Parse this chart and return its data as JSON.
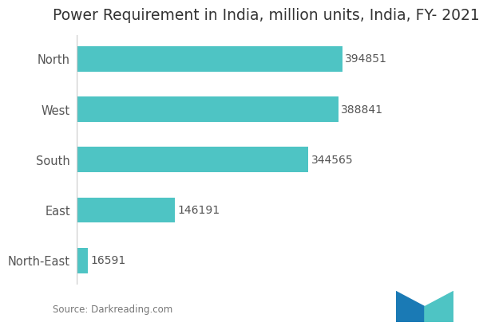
{
  "title": "Power Requirement in India, million units, India, FY- 2021",
  "categories": [
    "North-East",
    "East",
    "South",
    "West",
    "North"
  ],
  "values": [
    16591,
    146191,
    344565,
    388841,
    394851
  ],
  "bar_color": "#4ec4c4",
  "label_color": "#555555",
  "title_color": "#333333",
  "background_color": "#ffffff",
  "source_text": "Source: Darkreading.com",
  "title_fontsize": 13.5,
  "label_fontsize": 10.5,
  "value_fontsize": 10,
  "xlim": [
    0,
    460000
  ],
  "logo_colors": [
    "#1a7ab5",
    "#4ec4c4"
  ]
}
